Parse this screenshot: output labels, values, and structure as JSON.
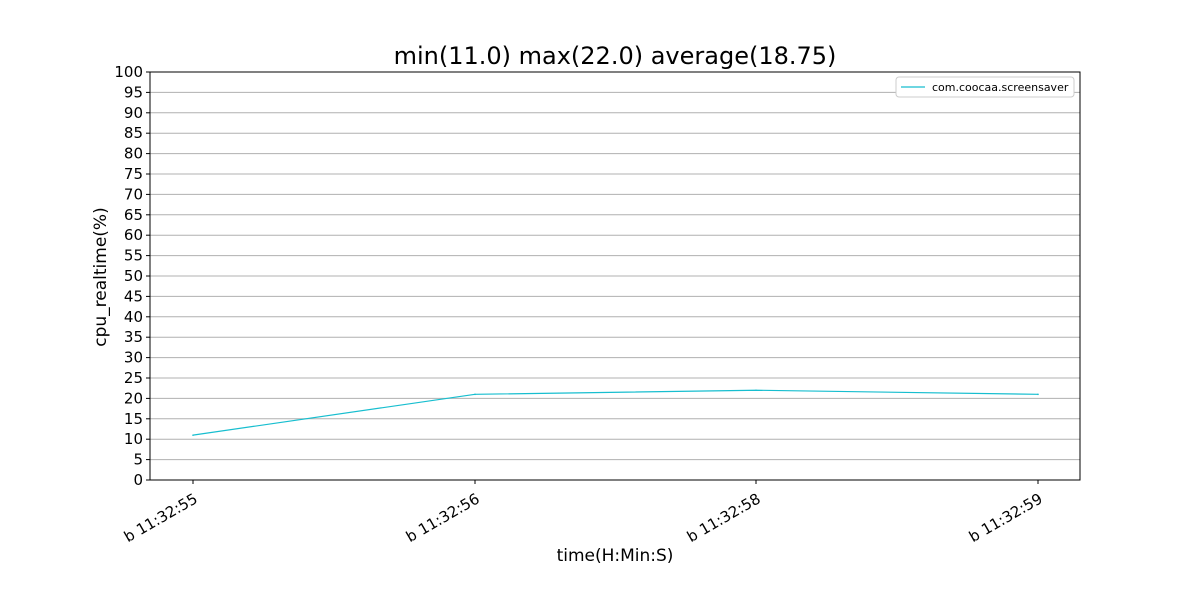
{
  "chart_data": {
    "type": "line",
    "title": "min(11.0) max(22.0) average(18.75)",
    "xlabel": "time(H:Min:S)",
    "ylabel": "cpu_realtime(%)",
    "categories": [
      "b 11:32:55",
      "b 11:32:56",
      "b 11:32:58",
      "b 11:32:59"
    ],
    "series": [
      {
        "name": "com.coocaa.screensaver",
        "values": [
          11,
          21,
          22,
          21
        ],
        "color": "#17becf"
      }
    ],
    "ylim": [
      0,
      100
    ],
    "ytick_step": 5,
    "grid": "horizontal",
    "legend": "top-right"
  }
}
